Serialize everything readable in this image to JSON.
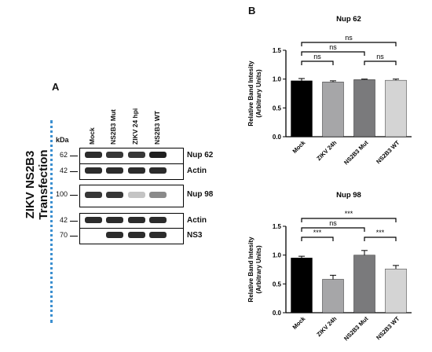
{
  "panel_a": {
    "letter": "A",
    "vertical_title_line1": "ZIKV NS2B3",
    "vertical_title_line2": "Transfection",
    "kda_label": "kDa",
    "lanes": [
      "Mock",
      "NS2B3 Mut",
      "ZIKV 24 hpi",
      "NS2B3 WT"
    ],
    "blots": [
      {
        "mw": "62",
        "name": "Nup 62",
        "intensity": [
          0.9,
          0.85,
          0.85,
          0.95
        ]
      },
      {
        "mw": "42",
        "name": "Actin",
        "intensity": [
          0.9,
          0.9,
          0.9,
          0.9
        ]
      },
      {
        "mw": "100",
        "name": "Nup 98",
        "intensity": [
          0.85,
          0.85,
          0.25,
          0.5
        ]
      },
      {
        "mw": "42",
        "name": "Actin",
        "intensity": [
          0.9,
          0.9,
          0.9,
          0.9
        ]
      },
      {
        "mw": "70",
        "name": "NS3",
        "intensity": [
          0.0,
          0.9,
          0.9,
          0.9
        ]
      }
    ]
  },
  "panel_b": {
    "letter": "B"
  },
  "chart_data": [
    {
      "type": "bar",
      "title": "Nup 62",
      "ylabel": "Relative Band Intesity (Arbitrary Units)",
      "ylabel_line1": "Relative Band Intesity",
      "ylabel_line2": "(Arbitrary Units)",
      "categories": [
        "Mock",
        "ZIKV 24h",
        "NS2B3 Mut",
        "NS2B3 WT"
      ],
      "values": [
        0.97,
        0.95,
        0.99,
        0.98
      ],
      "errors": [
        0.04,
        0.02,
        0.01,
        0.02
      ],
      "colors": [
        "#000000",
        "#a6a6a8",
        "#7a7a7c",
        "#d4d4d4"
      ],
      "ylim": [
        0,
        1.5
      ],
      "yticks": [
        "0.0",
        "0.5",
        "1.0",
        "1.5"
      ],
      "significance": [
        {
          "from": 0,
          "to": 3,
          "label": "ns"
        },
        {
          "from": 0,
          "to": 2,
          "label": "ns"
        },
        {
          "from": 0,
          "to": 1,
          "label": "ns"
        },
        {
          "from": 2,
          "to": 3,
          "label": "ns"
        }
      ]
    },
    {
      "type": "bar",
      "title": "Nup 98",
      "ylabel": "Relative Band Intesity (Arbitrary Units)",
      "ylabel_line1": "Relative Band Intesity",
      "ylabel_line2": "(Arbitrary Units)",
      "categories": [
        "Mock",
        "ZIKV 24h",
        "NS2B3 Mut",
        "NS2B3 WT"
      ],
      "values": [
        0.95,
        0.58,
        1.0,
        0.76
      ],
      "errors": [
        0.03,
        0.07,
        0.08,
        0.06
      ],
      "colors": [
        "#000000",
        "#a6a6a8",
        "#7a7a7c",
        "#d4d4d4"
      ],
      "ylim": [
        0,
        1.5
      ],
      "yticks": [
        "0.0",
        "0.5",
        "1.0",
        "1.5"
      ],
      "significance": [
        {
          "from": 0,
          "to": 3,
          "label": "***"
        },
        {
          "from": 0,
          "to": 2,
          "label": "ns"
        },
        {
          "from": 0,
          "to": 1,
          "label": "***"
        },
        {
          "from": 2,
          "to": 3,
          "label": "***"
        }
      ]
    }
  ]
}
